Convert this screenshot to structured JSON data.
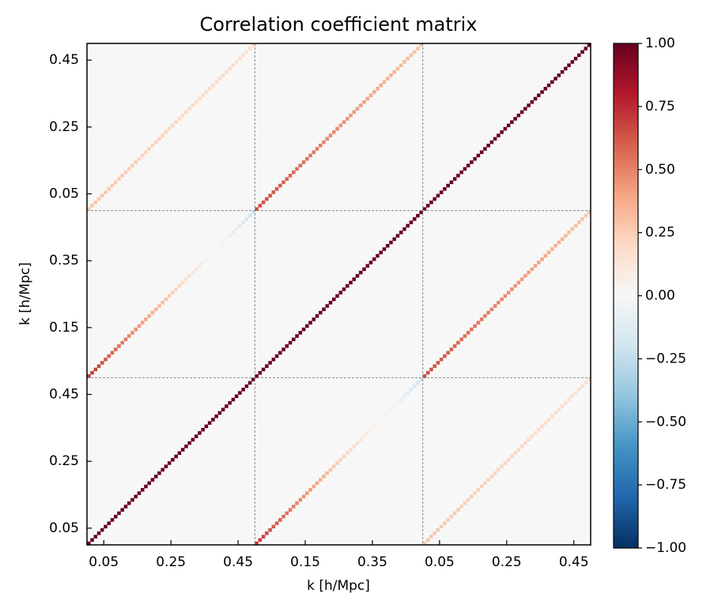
{
  "chart_data": {
    "type": "heatmap",
    "title": "Correlation coefficient matrix",
    "xlabel": "k [h/Mpc]",
    "ylabel": "k [h/Mpc]",
    "colormap": "RdBu_r",
    "xlim": [
      0,
      1.5
    ],
    "ylim": [
      0,
      1.5
    ],
    "xticks": [
      0.05,
      0.25,
      0.45,
      {
        "value": 0.65,
        "label": "0.15"
      },
      {
        "value": 0.85,
        "label": "0.35"
      },
      {
        "value": 1.05,
        "label": "0.05"
      },
      {
        "value": 1.25,
        "label": "0.25"
      },
      {
        "value": 1.45,
        "label": "0.45"
      }
    ],
    "yticks": [
      0.05,
      0.25,
      0.45,
      {
        "value": 0.65,
        "label": "0.15"
      },
      {
        "value": 0.85,
        "label": "0.35"
      },
      {
        "value": 1.05,
        "label": "0.05"
      },
      {
        "value": 1.25,
        "label": "0.25"
      },
      {
        "value": 1.45,
        "label": "0.45"
      }
    ],
    "separators": [
      0.5,
      1.0
    ],
    "background_value": 0,
    "zlim": [
      -1,
      1
    ],
    "zticks": [
      {
        "value": -1,
        "label": "−1.00"
      },
      {
        "value": -0.75,
        "label": "−0.75"
      },
      {
        "value": -0.5,
        "label": "−0.50"
      },
      {
        "value": -0.25,
        "label": "−0.25"
      },
      {
        "value": 0,
        "label": "0.00"
      },
      0.25,
      {
        "value": 0.5,
        "label": "0.50"
      },
      0.75,
      {
        "value": 1,
        "label": "1.00"
      }
    ],
    "blocks": [
      {
        "row": 0,
        "col": 0,
        "values": [
          1,
          1,
          1,
          1,
          1,
          1,
          1,
          1,
          1,
          1,
          1,
          1,
          1,
          1,
          1,
          1,
          1,
          1,
          1,
          1,
          1,
          1,
          1,
          1,
          1,
          1,
          1,
          1,
          1,
          1,
          1,
          1,
          1,
          1,
          1,
          1,
          1,
          1,
          1,
          1,
          1,
          1,
          1,
          1,
          1,
          1,
          1,
          1,
          1,
          1
        ]
      },
      {
        "row": 1,
        "col": 1,
        "values": [
          1,
          1,
          1,
          1,
          1,
          1,
          1,
          1,
          1,
          1,
          1,
          1,
          1,
          1,
          1,
          1,
          1,
          1,
          1,
          1,
          1,
          1,
          1,
          1,
          1,
          1,
          1,
          1,
          1,
          1,
          1,
          1,
          1,
          1,
          1,
          1,
          1,
          1,
          1,
          1,
          1,
          1,
          1,
          1,
          1,
          1,
          1,
          1,
          1,
          1
        ]
      },
      {
        "row": 2,
        "col": 2,
        "values": [
          1,
          1,
          1,
          1,
          1,
          1,
          1,
          1,
          1,
          1,
          1,
          1,
          1,
          1,
          1,
          1,
          1,
          1,
          1,
          1,
          1,
          1,
          1,
          1,
          1,
          1,
          1,
          1,
          1,
          1,
          1,
          1,
          1,
          1,
          1,
          1,
          1,
          1,
          1,
          1,
          1,
          1,
          1,
          1,
          1,
          1,
          1,
          1,
          1,
          1
        ]
      },
      {
        "row": 1,
        "col": 0,
        "values": [
          0.72,
          0.7,
          0.68,
          0.66,
          0.64,
          0.62,
          0.6,
          0.59,
          0.57,
          0.55,
          0.53,
          0.51,
          0.49,
          0.47,
          0.45,
          0.43,
          0.42,
          0.4,
          0.38,
          0.36,
          0.34,
          0.32,
          0.3,
          0.28,
          0.26,
          0.25,
          0.23,
          0.21,
          0.19,
          0.17,
          0.15,
          0.13,
          0.11,
          0.09,
          0.07,
          0.06,
          0.04,
          0.02,
          0,
          -0.02,
          -0.04,
          -0.06,
          -0.08,
          -0.1,
          -0.11,
          -0.13,
          -0.15,
          -0.17,
          -0.19,
          -0.21
        ]
      },
      {
        "row": 2,
        "col": 1,
        "values": [
          0.66,
          0.65,
          0.64,
          0.63,
          0.63,
          0.62,
          0.61,
          0.6,
          0.6,
          0.59,
          0.58,
          0.57,
          0.56,
          0.56,
          0.55,
          0.54,
          0.53,
          0.53,
          0.52,
          0.51,
          0.5,
          0.49,
          0.49,
          0.48,
          0.47,
          0.46,
          0.46,
          0.45,
          0.44,
          0.43,
          0.42,
          0.42,
          0.41,
          0.4,
          0.39,
          0.39,
          0.38,
          0.37,
          0.36,
          0.35,
          0.35,
          0.34,
          0.33,
          0.32,
          0.32,
          0.31,
          0.3,
          0.29,
          0.28,
          0.28
        ]
      },
      {
        "row": 2,
        "col": 0,
        "values": [
          0.28,
          0.28,
          0.28,
          0.27,
          0.27,
          0.27,
          0.27,
          0.26,
          0.26,
          0.26,
          0.26,
          0.25,
          0.25,
          0.25,
          0.25,
          0.24,
          0.24,
          0.24,
          0.24,
          0.23,
          0.23,
          0.23,
          0.23,
          0.22,
          0.22,
          0.22,
          0.22,
          0.21,
          0.21,
          0.21,
          0.21,
          0.2,
          0.2,
          0.2,
          0.2,
          0.19,
          0.19,
          0.19,
          0.19,
          0.18,
          0.18,
          0.18,
          0.18,
          0.17,
          0.17,
          0.17,
          0.17,
          0.16,
          0.16,
          0.16
        ]
      }
    ]
  }
}
